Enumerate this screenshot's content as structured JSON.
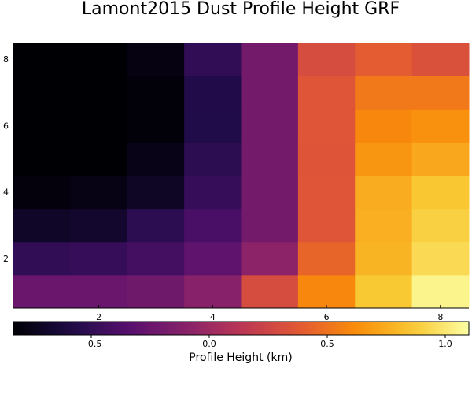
{
  "chart_data": {
    "type": "heatmap",
    "title": "Lamont2015 Dust Profile Height GRF",
    "x": [
      1,
      2,
      3,
      4,
      5,
      6,
      7,
      8
    ],
    "y": [
      1,
      2,
      3,
      4,
      5,
      6,
      7,
      8
    ],
    "xticks": [
      "2",
      "4",
      "6",
      "8"
    ],
    "yticks": [
      "2",
      "4",
      "6",
      "8"
    ],
    "xlim": [
      0.5,
      8.5
    ],
    "ylim": [
      0.5,
      8.5
    ],
    "grid": false,
    "colormap": "inferno",
    "values": [
      [
        -0.25,
        -0.25,
        -0.22,
        -0.1,
        0.3,
        0.6,
        0.87,
        1.05
      ],
      [
        -0.5,
        -0.48,
        -0.42,
        -0.3,
        -0.08,
        0.44,
        0.78,
        0.94
      ],
      [
        -0.7,
        -0.68,
        -0.52,
        -0.4,
        -0.2,
        0.36,
        0.76,
        0.9
      ],
      [
        -0.8,
        -0.77,
        -0.71,
        -0.48,
        -0.2,
        0.36,
        0.75,
        0.86
      ],
      [
        -0.83,
        -0.83,
        -0.76,
        -0.52,
        -0.2,
        0.35,
        0.66,
        0.73
      ],
      [
        -0.83,
        -0.83,
        -0.81,
        -0.58,
        -0.2,
        0.36,
        0.6,
        0.64
      ],
      [
        -0.83,
        -0.83,
        -0.81,
        -0.57,
        -0.2,
        0.36,
        0.53,
        0.53
      ],
      [
        -0.83,
        -0.83,
        -0.78,
        -0.5,
        -0.2,
        0.3,
        0.4,
        0.33
      ]
    ],
    "colorbar": {
      "label": "Profile Height (km)",
      "min": -0.83,
      "max": 1.1,
      "ticks": [
        -0.5,
        0.0,
        0.5,
        1.0
      ],
      "tick_labels": [
        "−0.5",
        "0.0",
        "0.5",
        "1.0"
      ]
    }
  }
}
